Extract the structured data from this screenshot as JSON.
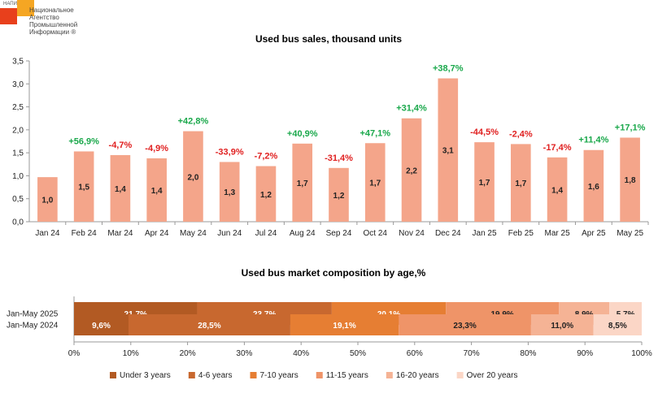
{
  "logo": {
    "tag": "НАПИ",
    "name_lines": [
      "Национальное",
      "Агентство",
      "Промышленной",
      "Информации ®"
    ]
  },
  "chart_data": [
    {
      "type": "bar",
      "title": "Used bus sales, thousand units",
      "categories": [
        "Jan 24",
        "Feb 24",
        "Mar 24",
        "Apr 24",
        "May 24",
        "Jun 24",
        "Jul 24",
        "Aug 24",
        "Sep 24",
        "Oct 24",
        "Nov 24",
        "Dec 24",
        "Jan 25",
        "Feb 25",
        "Mar 25",
        "Apr 25",
        "May 25"
      ],
      "values": [
        0.97,
        1.53,
        1.45,
        1.38,
        1.97,
        1.3,
        1.21,
        1.7,
        1.17,
        1.71,
        2.25,
        3.12,
        1.73,
        1.69,
        1.4,
        1.56,
        1.83
      ],
      "value_labels": [
        "1,0",
        "1,5",
        "1,4",
        "1,4",
        "2,0",
        "1,3",
        "1,2",
        "1,7",
        "1,2",
        "1,7",
        "2,2",
        "3,1",
        "1,7",
        "1,7",
        "1,4",
        "1,6",
        "1,8"
      ],
      "changes": [
        "",
        "+56,9%",
        "-4,7%",
        "-4,9%",
        "+42,8%",
        "-33,9%",
        "-7,2%",
        "+40,9%",
        "-31,4%",
        "+47,1%",
        "+31,4%",
        "+38,7%",
        "-44,5%",
        "-2,4%",
        "-17,4%",
        "+11,4%",
        "+17,1%"
      ],
      "ylim": [
        0,
        3.5
      ],
      "yticks": [
        "0,0",
        "0,5",
        "1,0",
        "1,5",
        "2,0",
        "2,5",
        "3,0",
        "3,5"
      ],
      "grid": false,
      "colors": {
        "bar": "#f4a58a",
        "positive": "#1aa84b",
        "negative": "#e02020"
      }
    },
    {
      "type": "bar",
      "stacked": "horizontal-100",
      "title": "Used bus market composition by age,%",
      "categories": [
        "Jan-May 2025",
        "Jan-May 2024"
      ],
      "series": [
        {
          "name": "Under 3 years",
          "values": [
            21.7,
            9.6
          ],
          "labels": [
            "21,7%",
            "9,6%"
          ],
          "color": "#b25a23"
        },
        {
          "name": "4-6 years",
          "values": [
            23.7,
            28.5
          ],
          "labels": [
            "23,7%",
            "28,5%"
          ],
          "color": "#c8682f"
        },
        {
          "name": "7-10 years",
          "values": [
            20.1,
            19.1
          ],
          "labels": [
            "20,1%",
            "19,1%"
          ],
          "color": "#e67e33"
        },
        {
          "name": "11-15 years",
          "values": [
            19.9,
            23.3
          ],
          "labels": [
            "19,9%",
            "23,3%"
          ],
          "color": "#ef9468"
        },
        {
          "name": "16-20 years",
          "values": [
            8.9,
            11.0
          ],
          "labels": [
            "8,9%",
            "11,0%"
          ],
          "color": "#f5b395"
        },
        {
          "name": "Over 20 years",
          "values": [
            5.7,
            8.5
          ],
          "labels": [
            "5,7%",
            "8,5%"
          ],
          "color": "#fbd6c6"
        }
      ],
      "xticks": [
        "0%",
        "10%",
        "20%",
        "30%",
        "40%",
        "50%",
        "60%",
        "70%",
        "80%",
        "90%",
        "100%"
      ],
      "xlim": [
        0,
        100
      ],
      "legend": "bottom"
    }
  ]
}
